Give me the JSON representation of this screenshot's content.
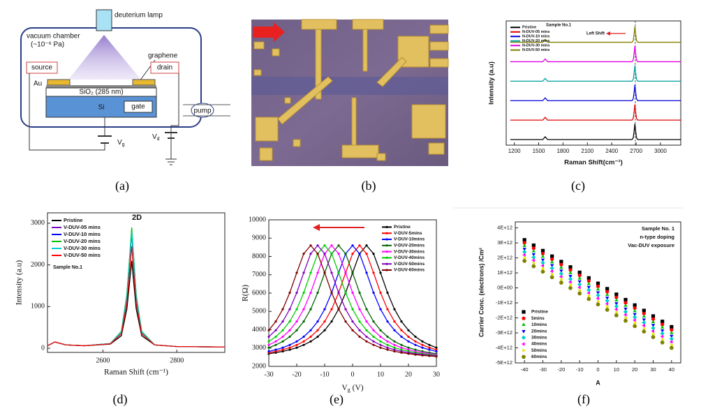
{
  "diagram": {
    "lamp": "deuterium lamp",
    "chamber": "vacuum chamber",
    "pressure": "(~10⁻⁶ Pa)",
    "graphene": "graphene",
    "source": "source",
    "drain": "drain",
    "au": "Au",
    "oxide": "SiO₂ (285 nm)",
    "si": "Si",
    "gate": "gate",
    "pump": "pump",
    "vg": [
      "V",
      "g"
    ],
    "vd": [
      "V",
      "d"
    ]
  },
  "captions": [
    "(a)",
    "(b)",
    "(c)",
    "(d)",
    "(e)",
    "(f)"
  ],
  "chart_data": [
    {
      "type": "line",
      "annotations": [
        "Sample No.1",
        "Left Shift"
      ],
      "xlabel": "Raman Shift(cm⁻¹)",
      "ylabel": "Intensity (a.u)",
      "legend": "upper left",
      "reference_x": 2690,
      "x": [
        1150,
        1350,
        1550,
        1580,
        1610,
        2000,
        2400,
        2650,
        2665,
        2677,
        2685,
        2693,
        2705,
        2720,
        3250
      ],
      "xlim": [
        1100,
        3250
      ],
      "xticks": [
        1200,
        1500,
        1800,
        2100,
        2400,
        2700,
        3000
      ],
      "ylim": [
        0,
        6.7
      ],
      "series": [
        {
          "name": "Pristine",
          "color": "#000000",
          "values": [
            0.3,
            0.3,
            0.3,
            0.45,
            0.3,
            0.3,
            0.3,
            0.3,
            0.4,
            0.8,
            1.15,
            0.8,
            0.4,
            0.3,
            0.3
          ]
        },
        {
          "name": "N-DUV-05 mins",
          "color": "#e00000",
          "values": [
            1.35,
            1.35,
            1.35,
            1.5,
            1.35,
            1.35,
            1.35,
            1.35,
            1.45,
            1.85,
            2.2,
            1.85,
            1.45,
            1.35,
            1.35
          ]
        },
        {
          "name": "N-DUV-10 mins",
          "color": "#0000e0",
          "values": [
            2.4,
            2.4,
            2.4,
            2.55,
            2.4,
            2.4,
            2.4,
            2.4,
            2.5,
            2.9,
            3.25,
            2.9,
            2.5,
            2.4,
            2.4
          ]
        },
        {
          "name": "N-DUV-20 mins",
          "color": "#00a0a0",
          "values": [
            3.45,
            3.45,
            3.45,
            3.6,
            3.45,
            3.45,
            3.45,
            3.45,
            3.55,
            3.95,
            4.3,
            3.95,
            3.55,
            3.45,
            3.45
          ]
        },
        {
          "name": "N-DUV-30 mins",
          "color": "#e000e0",
          "values": [
            4.5,
            4.5,
            4.5,
            4.65,
            4.5,
            4.5,
            4.5,
            4.5,
            4.6,
            5.0,
            5.35,
            5.0,
            4.6,
            4.5,
            4.5
          ]
        },
        {
          "name": "N-DUV-50 mins",
          "color": "#808000",
          "values": [
            5.55,
            5.55,
            5.55,
            5.7,
            5.55,
            5.55,
            5.55,
            5.55,
            5.65,
            6.05,
            6.4,
            6.05,
            5.65,
            5.55,
            5.55
          ]
        }
      ]
    },
    {
      "type": "line",
      "annotations": [
        "2D",
        "Sample No.1"
      ],
      "xlabel": "Raman Shift (cm⁻¹)",
      "ylabel": "Intensity (a.u)",
      "legend": "upper left",
      "x": [
        2450,
        2470,
        2500,
        2550,
        2620,
        2650,
        2665,
        2678,
        2690,
        2705,
        2740,
        2800,
        2930
      ],
      "xlim": [
        2450,
        2930
      ],
      "xticks": [
        2600,
        2800
      ],
      "ylim": [
        -100,
        3250
      ],
      "yticks": [
        0,
        1000,
        2000,
        3000
      ],
      "series": [
        {
          "name": "Pristine",
          "color": "#000000",
          "values": [
            60,
            150,
            80,
            60,
            100,
            300,
            950,
            2100,
            950,
            300,
            80,
            40,
            30
          ]
        },
        {
          "name": "V-DUV-05 mins",
          "color": "#8000c0",
          "values": [
            60,
            150,
            80,
            60,
            110,
            400,
            1280,
            2850,
            1280,
            400,
            80,
            40,
            30
          ]
        },
        {
          "name": "V-DUV-10 mins",
          "color": "#0000ff",
          "values": [
            60,
            150,
            80,
            60,
            110,
            385,
            1240,
            2750,
            1240,
            385,
            80,
            40,
            30
          ]
        },
        {
          "name": "V-DUV-20 mins",
          "color": "#00c000",
          "values": [
            60,
            150,
            80,
            60,
            110,
            405,
            1300,
            2900,
            1300,
            405,
            80,
            40,
            30
          ]
        },
        {
          "name": "V-DUV-30 mins",
          "color": "#00d0d0",
          "values": [
            60,
            150,
            80,
            60,
            110,
            390,
            1260,
            2800,
            1260,
            390,
            80,
            40,
            30
          ]
        },
        {
          "name": "V-DUV-50 mins",
          "color": "#ff0000",
          "values": [
            60,
            150,
            80,
            60,
            105,
            345,
            1100,
            2450,
            1100,
            345,
            80,
            40,
            30
          ]
        }
      ]
    },
    {
      "type": "line",
      "marker": "circle",
      "xlabel": [
        "V",
        "g",
        " (V)"
      ],
      "ylabel": "R(Ω)",
      "legend": "upper right",
      "x": [
        -30,
        -27.5,
        -25,
        -22.5,
        -20,
        -17.5,
        -15,
        -12.5,
        -10,
        -7.5,
        -5,
        -2.5,
        0,
        2.5,
        5,
        7.5,
        10,
        12.5,
        15,
        17.5,
        20,
        22.5,
        25,
        27.5,
        30
      ],
      "xlim": [
        -30,
        30
      ],
      "xticks": [
        -30,
        -20,
        -10,
        0,
        10,
        20,
        30
      ],
      "ylim": [
        2000,
        10000
      ],
      "yticks": [
        2000,
        3000,
        4000,
        5000,
        6000,
        7000,
        8000,
        9000,
        10000
      ],
      "series": [
        {
          "name": "Pristine",
          "color": "#000000",
          "values": [
            2690,
            2750,
            2820,
            2910,
            3020,
            3170,
            3360,
            3620,
            3970,
            4450,
            5120,
            6020,
            7110,
            8150,
            8600,
            8150,
            7110,
            6020,
            5120,
            4450,
            3970,
            3620,
            3360,
            3170,
            3020
          ]
        },
        {
          "name": "V-DUV-5mins",
          "color": "#ff0000",
          "values": [
            2750,
            2820,
            2910,
            3020,
            3170,
            3360,
            3620,
            3970,
            4450,
            5120,
            6020,
            7110,
            8150,
            8600,
            8150,
            7110,
            6020,
            5120,
            4450,
            3970,
            3620,
            3360,
            3170,
            3020,
            2910
          ]
        },
        {
          "name": "V-DUV-10mins",
          "color": "#0000ff",
          "values": [
            2820,
            2910,
            3020,
            3170,
            3360,
            3620,
            3970,
            4450,
            5120,
            6020,
            7110,
            8150,
            8600,
            8150,
            7110,
            6020,
            5120,
            4450,
            3970,
            3620,
            3360,
            3170,
            3020,
            2910,
            2820
          ]
        },
        {
          "name": "V-DUV-20mins",
          "color": "#006400",
          "values": [
            3020,
            3170,
            3360,
            3620,
            3970,
            4450,
            5120,
            6020,
            7110,
            8150,
            8600,
            8150,
            7110,
            6020,
            5120,
            4450,
            3970,
            3620,
            3360,
            3170,
            3020,
            2910,
            2820,
            2750,
            2690
          ]
        },
        {
          "name": "V-DUV-30mins",
          "color": "#ff00ff",
          "values": [
            3170,
            3360,
            3620,
            3970,
            4450,
            5120,
            6020,
            7110,
            8150,
            8600,
            8150,
            7110,
            6020,
            5120,
            4450,
            3970,
            3620,
            3360,
            3170,
            3020,
            2910,
            2820,
            2750,
            2690,
            2640
          ]
        },
        {
          "name": "V-DUV-40mins",
          "color": "#00cc00",
          "values": [
            3360,
            3620,
            3970,
            4450,
            5120,
            6020,
            7110,
            8150,
            8600,
            8150,
            7110,
            6020,
            5120,
            4450,
            3970,
            3620,
            3360,
            3170,
            3020,
            2910,
            2820,
            2750,
            2690,
            2640,
            2600
          ]
        },
        {
          "name": "V-DUV-50mins",
          "color": "#8000c0",
          "values": [
            3620,
            3970,
            4450,
            5120,
            6020,
            7110,
            8150,
            8600,
            8150,
            7110,
            6020,
            5120,
            4450,
            3970,
            3620,
            3360,
            3170,
            3020,
            2910,
            2820,
            2750,
            2690,
            2640,
            2600,
            2570
          ]
        },
        {
          "name": "V-DUV-60mins",
          "color": "#800000",
          "values": [
            3970,
            4450,
            5120,
            6020,
            7110,
            8150,
            8600,
            8150,
            7110,
            6020,
            5120,
            4450,
            3970,
            3620,
            3360,
            3170,
            3020,
            2910,
            2820,
            2750,
            2690,
            2640,
            2600,
            2570,
            2540
          ]
        }
      ]
    },
    {
      "type": "scatter",
      "annotations": [
        "Sample No. 1",
        "n-type doping",
        "Vac-DUV exposure"
      ],
      "xlabel": "A",
      "ylabel": "Carrier Conc. (electrons) /Cm²",
      "legend": "lower left",
      "x": [
        -40,
        -35,
        -30,
        -25,
        -20,
        -15,
        -10,
        -5,
        0,
        5,
        10,
        15,
        20,
        25,
        30,
        35,
        40
      ],
      "xlim": [
        -45,
        45
      ],
      "xticks": [
        -40,
        -30,
        -20,
        -10,
        0,
        10,
        20,
        30,
        40
      ],
      "ylim": [
        -5000000000000.0,
        4400000000000.0
      ],
      "yticks": [
        {
          "value": 4000000000000.0,
          "label": "4E+12"
        },
        {
          "value": 3000000000000.0,
          "label": "3E+12"
        },
        {
          "value": 2000000000000.0,
          "label": "2E+12"
        },
        {
          "value": 1000000000000.0,
          "label": "1E+12"
        },
        {
          "value": 0,
          "label": "0E+00"
        },
        {
          "value": -1000000000000.0,
          "label": "-1E+12"
        },
        {
          "value": -2000000000000.0,
          "label": "-2E+12"
        },
        {
          "value": -3000000000000.0,
          "label": "-3E+12"
        },
        {
          "value": -4000000000000.0,
          "label": "-4E+12"
        },
        {
          "value": -5000000000000.0,
          "label": "-5E+12"
        }
      ],
      "series": [
        {
          "name": "Pristine",
          "color": "#000000",
          "marker": "square",
          "values": [
            3200000000000.0,
            2840000000000.0,
            2480000000000.0,
            2110000000000.0,
            1750000000000.0,
            1390000000000.0,
            1030000000000.0,
            660000000000.0,
            300000000000.0,
            -60000000000.0,
            -430000000000.0,
            -790000000000.0,
            -1150000000000.0,
            -1510000000000.0,
            -1880000000000.0,
            -2240000000000.0,
            -2600000000000.0
          ]
        },
        {
          "name": "5mins",
          "color": "#ff0000",
          "marker": "circle",
          "values": [
            3000000000000.0,
            2640000000000.0,
            2280000000000.0,
            1910000000000.0,
            1550000000000.0,
            1190000000000.0,
            830000000000.0,
            460000000000.0,
            100000000000.0,
            -260000000000.0,
            -630000000000.0,
            -990000000000.0,
            -1350000000000.0,
            -1710000000000.0,
            -2080000000000.0,
            -2440000000000.0,
            -2800000000000.0
          ]
        },
        {
          "name": "10mins",
          "color": "#00c000",
          "marker": "triangle-up",
          "values": [
            2800000000000.0,
            2440000000000.0,
            2080000000000.0,
            1710000000000.0,
            1350000000000.0,
            990000000000.0,
            630000000000.0,
            260000000000.0,
            -100000000000.0,
            -460000000000.0,
            -830000000000.0,
            -1190000000000.0,
            -1550000000000.0,
            -1910000000000.0,
            -2280000000000.0,
            -2640000000000.0,
            -3000000000000.0
          ]
        },
        {
          "name": "20mins",
          "color": "#0000ff",
          "marker": "triangle-down",
          "values": [
            2600000000000.0,
            2240000000000.0,
            1880000000000.0,
            1510000000000.0,
            1150000000000.0,
            790000000000.0,
            430000000000.0,
            60000000000.0,
            -300000000000.0,
            -660000000000.0,
            -1030000000000.0,
            -1390000000000.0,
            -1750000000000.0,
            -2110000000000.0,
            -2480000000000.0,
            -2840000000000.0,
            -3200000000000.0
          ]
        },
        {
          "name": "30mins",
          "color": "#00d0d0",
          "marker": "diamond",
          "values": [
            2400000000000.0,
            2040000000000.0,
            1680000000000.0,
            1310000000000.0,
            950000000000.0,
            590000000000.0,
            230000000000.0,
            -140000000000.0,
            -500000000000.0,
            -860000000000.0,
            -1230000000000.0,
            -1590000000000.0,
            -1950000000000.0,
            -2310000000000.0,
            -2680000000000.0,
            -3040000000000.0,
            -3400000000000.0
          ]
        },
        {
          "name": "40mins",
          "color": "#ff00ff",
          "marker": "triangle-left",
          "values": [
            2200000000000.0,
            1840000000000.0,
            1480000000000.0,
            1110000000000.0,
            750000000000.0,
            390000000000.0,
            30000000000.0,
            -340000000000.0,
            -700000000000.0,
            -1060000000000.0,
            -1430000000000.0,
            -1790000000000.0,
            -2150000000000.0,
            -2510000000000.0,
            -2880000000000.0,
            -3240000000000.0,
            -3600000000000.0
          ]
        },
        {
          "name": "50mins",
          "color": "#e6e600",
          "marker": "triangle-right",
          "values": [
            2000000000000.0,
            1640000000000.0,
            1280000000000.0,
            910000000000.0,
            550000000000.0,
            190000000000.0,
            -170000000000.0,
            -540000000000.0,
            -900000000000.0,
            -1260000000000.0,
            -1630000000000.0,
            -1990000000000.0,
            -2350000000000.0,
            -2710000000000.0,
            -3080000000000.0,
            -3440000000000.0,
            -3800000000000.0
          ]
        },
        {
          "name": "60mins",
          "color": "#808000",
          "marker": "hexagon",
          "values": [
            1800000000000.0,
            1440000000000.0,
            1080000000000.0,
            710000000000.0,
            350000000000.0,
            -10000000000.0,
            -370000000000.0,
            -740000000000.0,
            -1100000000000.0,
            -1460000000000.0,
            -1830000000000.0,
            -2190000000000.0,
            -2550000000000.0,
            -2910000000000.0,
            -3280000000000.0,
            -3640000000000.0,
            -4000000000000.0
          ]
        }
      ]
    }
  ]
}
